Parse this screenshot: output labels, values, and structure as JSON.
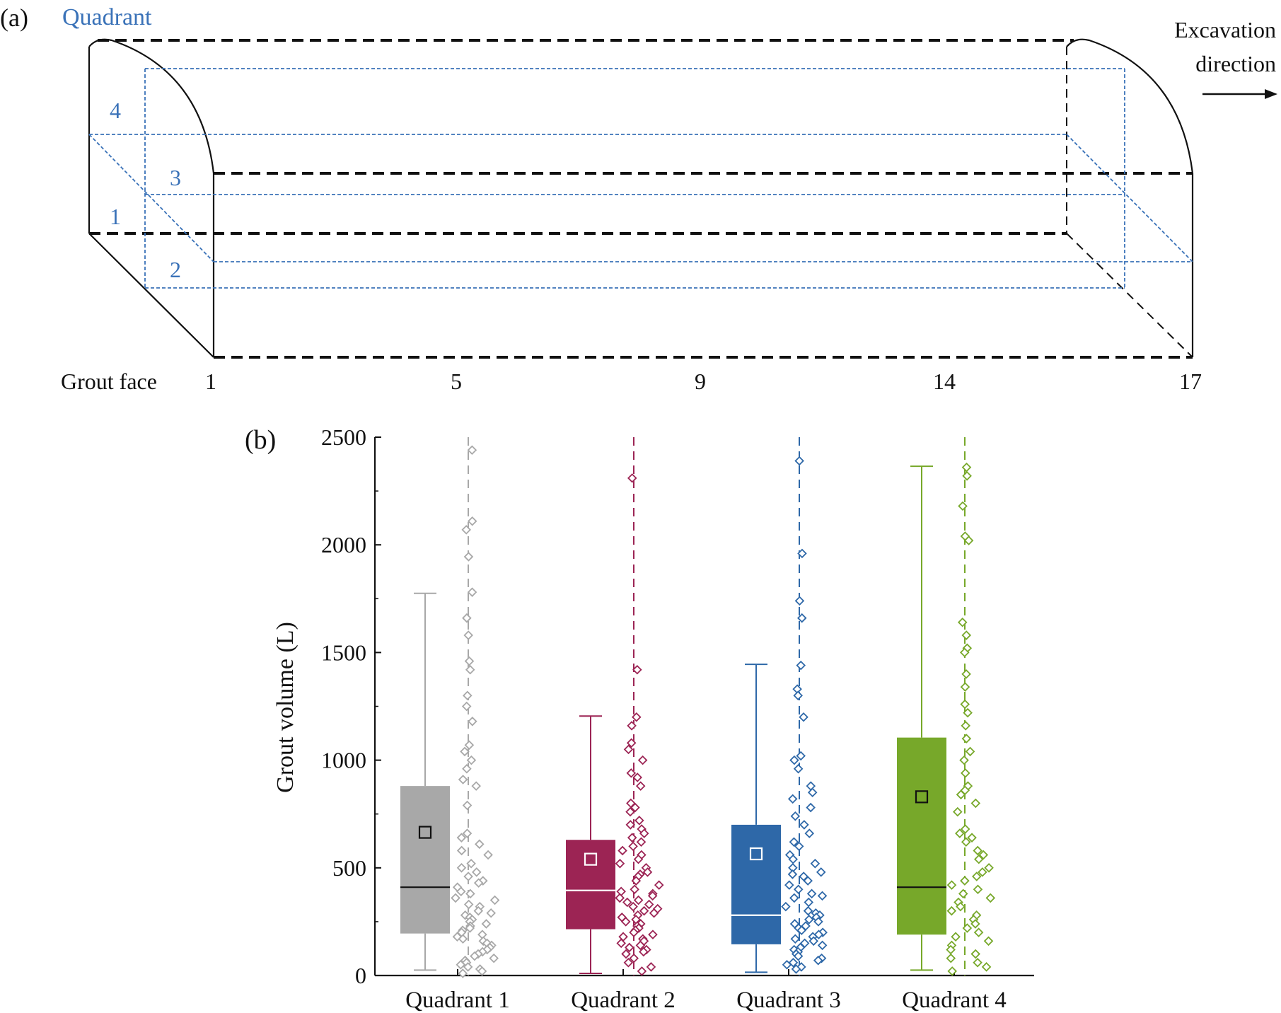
{
  "panel_a": {
    "panel_label": "(a)",
    "quadrant_title": "Quadrant",
    "quadrant_numbers": [
      "4",
      "3",
      "1",
      "2"
    ],
    "excavation_label_line1": "Excavation",
    "excavation_label_line2": "direction",
    "grout_face_label": "Grout face",
    "face_ticks": [
      "1",
      "5",
      "9",
      "14",
      "17"
    ],
    "colors": {
      "outline": "#111111",
      "quadrant": "#3a72b8"
    }
  },
  "panel_b": {
    "panel_label": "(b)"
  },
  "chart_data": {
    "type": "box",
    "ylabel": "Grout volume (L)",
    "xlabel": "",
    "ylim": [
      0,
      2500
    ],
    "yticks": [
      0,
      500,
      1000,
      1500,
      2000,
      2500
    ],
    "grid": false,
    "categories": [
      "Quadrant 1",
      "Quadrant 2",
      "Quadrant 3",
      "Quadrant 4"
    ],
    "series": [
      {
        "color": "#a8a8a8",
        "whisker_low": 25,
        "q1": 195,
        "median": 410,
        "q3": 880,
        "whisker_high": 1775,
        "mean": 665,
        "median_line_color": "#111111",
        "mean_marker_color": "#111111",
        "points": [
          2440,
          2110,
          2070,
          1945,
          1780,
          1660,
          1580,
          1460,
          1420,
          1300,
          1250,
          1180,
          1070,
          1040,
          1000,
          960,
          910,
          880,
          790,
          660,
          640,
          610,
          580,
          560,
          520,
          500,
          480,
          460,
          440,
          430,
          410,
          390,
          380,
          360,
          350,
          330,
          320,
          300,
          290,
          280,
          270,
          260,
          250,
          240,
          230,
          220,
          210,
          200,
          190,
          180,
          170,
          160,
          150,
          140,
          130,
          120,
          110,
          100,
          90,
          80,
          70,
          60,
          50,
          40,
          30,
          20,
          10
        ]
      },
      {
        "color": "#9c2454",
        "whisker_low": 10,
        "q1": 215,
        "median": 395,
        "q3": 630,
        "whisker_high": 1205,
        "mean": 540,
        "median_line_color": "#ffffff",
        "mean_marker_color": "#ffffff",
        "points": [
          2310,
          1420,
          1200,
          1160,
          1080,
          1050,
          1000,
          940,
          920,
          880,
          800,
          780,
          760,
          720,
          700,
          680,
          660,
          640,
          620,
          600,
          580,
          560,
          540,
          520,
          500,
          480,
          470,
          460,
          440,
          420,
          400,
          390,
          380,
          370,
          360,
          350,
          340,
          330,
          320,
          310,
          300,
          290,
          280,
          270,
          260,
          250,
          240,
          230,
          220,
          210,
          200,
          190,
          180,
          170,
          160,
          150,
          140,
          130,
          120,
          110,
          100,
          80,
          60,
          40,
          20
        ]
      },
      {
        "color": "#2e68a8",
        "whisker_low": 15,
        "q1": 145,
        "median": 280,
        "q3": 700,
        "whisker_high": 1445,
        "mean": 565,
        "median_line_color": "#ffffff",
        "mean_marker_color": "#ffffff",
        "points": [
          2390,
          1960,
          1740,
          1660,
          1440,
          1330,
          1300,
          1200,
          1020,
          1000,
          960,
          880,
          850,
          820,
          780,
          740,
          700,
          660,
          620,
          600,
          560,
          540,
          520,
          500,
          480,
          470,
          460,
          440,
          420,
          400,
          380,
          370,
          360,
          340,
          320,
          300,
          290,
          280,
          270,
          260,
          250,
          240,
          230,
          220,
          210,
          200,
          190,
          180,
          170,
          160,
          150,
          140,
          130,
          120,
          110,
          100,
          90,
          80,
          70,
          60,
          50,
          40,
          30
        ]
      },
      {
        "color": "#77a82a",
        "whisker_low": 25,
        "q1": 190,
        "median": 410,
        "q3": 1105,
        "whisker_high": 2365,
        "mean": 830,
        "median_line_color": "#111111",
        "mean_marker_color": "#111111",
        "points": [
          2360,
          2320,
          2180,
          2040,
          2020,
          1640,
          1580,
          1520,
          1500,
          1400,
          1340,
          1260,
          1220,
          1160,
          1100,
          1040,
          1000,
          940,
          880,
          860,
          840,
          800,
          760,
          680,
          660,
          640,
          620,
          580,
          560,
          540,
          500,
          480,
          460,
          440,
          420,
          400,
          380,
          360,
          340,
          320,
          300,
          280,
          260,
          240,
          220,
          200,
          180,
          160,
          140,
          120,
          100,
          80,
          60,
          40,
          20
        ]
      }
    ]
  }
}
